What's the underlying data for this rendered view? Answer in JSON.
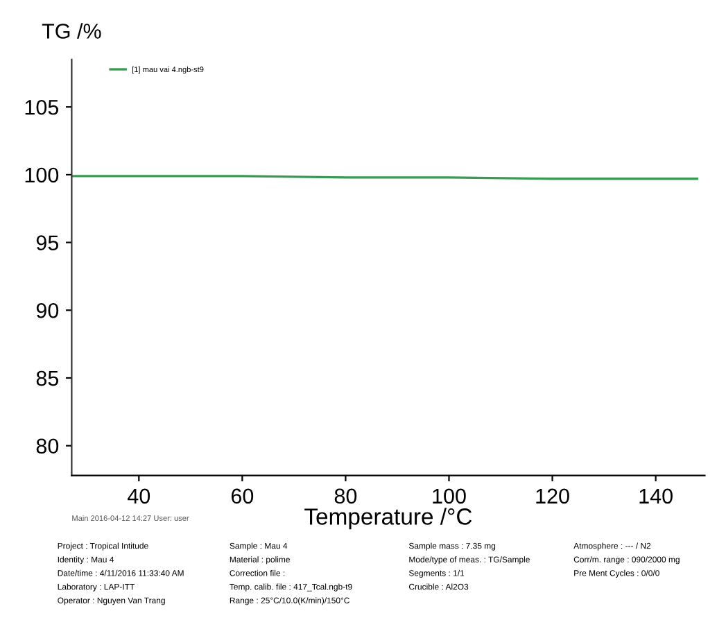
{
  "chart_data": {
    "type": "line",
    "ylabel": "TG /%",
    "xlabel": "Temperature /°C",
    "xlim": [
      27,
      149.5
    ],
    "xticks": [
      40,
      60,
      80,
      100,
      120,
      140
    ],
    "ylim": [
      77.8,
      108.5
    ],
    "yticks": [
      80,
      85,
      90,
      95,
      100,
      105
    ],
    "grid": false,
    "legend": "top left",
    "marker": "none",
    "line_style": "solid",
    "series": [
      {
        "name": "[1] mau vai 4.ngb-st9",
        "color": "#3a9a52",
        "x": [
          27,
          40,
          60,
          80,
          100,
          120,
          140,
          148
        ],
        "values": [
          99.9,
          99.9,
          99.9,
          99.8,
          99.8,
          99.7,
          99.7,
          99.7
        ]
      }
    ],
    "annotations": [
      "Main 2016-04-12 14:27 User: user",
      "Project : Tropical Intitude",
      "Identity : Mau 4",
      "Date/time : 4/11/2016 11:33:40 AM",
      "Laboratory : LAP-ITT",
      "Operator : Nguyen Van Trang",
      "Sample : Mau 4",
      "Material : polime",
      "Correction file :",
      "Temp. calib. file : 417_Tcal.ngb-t9",
      "Range : 25°C/10.0(K/min)/150°C",
      "Sample mass : 7.35 mg",
      "Mode/type of meas. : TG/Sample",
      "Segments : 1/1",
      "Crucible : Al2O3",
      "Atmosphere : --- / N2",
      "Corr/m. range : 090/2000 mg",
      "Pre Ment Cycles : 0/0/0"
    ]
  }
}
